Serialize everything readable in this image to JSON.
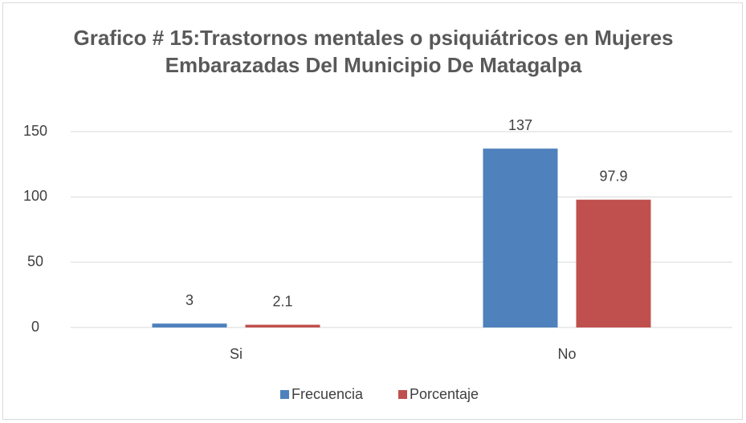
{
  "chart_data": {
    "type": "bar",
    "title": "Grafico # 15:Trastornos mentales o psiquiátricos en Mujeres Embarazadas Del Municipio De Matagalpa",
    "categories": [
      "Si",
      "No"
    ],
    "series": [
      {
        "name": "Frecuencia",
        "color": "#4f81bd",
        "values": [
          3,
          137
        ]
      },
      {
        "name": "Porcentaje",
        "color": "#c0504d",
        "values": [
          2.1,
          97.9
        ]
      }
    ],
    "ylim": [
      0,
      150
    ],
    "yticks": [
      0,
      50,
      100,
      150
    ],
    "grid": true,
    "legend": "bottom"
  }
}
